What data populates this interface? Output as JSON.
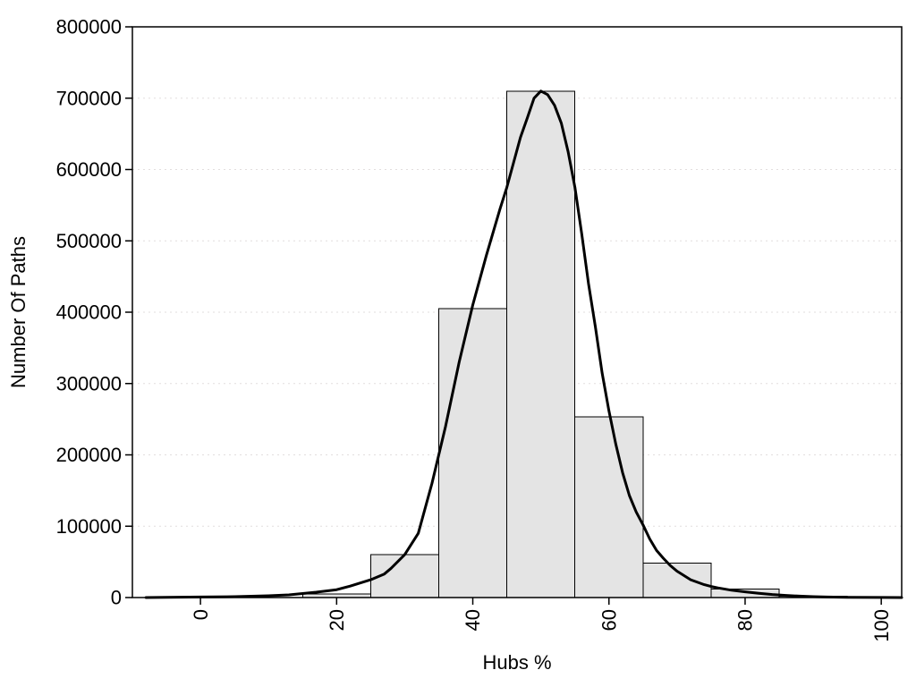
{
  "chart_data": {
    "type": "bar",
    "subtype": "histogram-with-density-curve",
    "title": "",
    "xlabel": "Hubs %",
    "ylabel": "Number Of Paths",
    "xlim": [
      -10,
      103
    ],
    "ylim": [
      0,
      800000
    ],
    "x_ticks": [
      0,
      20,
      40,
      60,
      80,
      100
    ],
    "y_ticks": [
      0,
      100000,
      200000,
      300000,
      400000,
      500000,
      600000,
      700000,
      800000
    ],
    "x_tick_rotation": -90,
    "legend": "none",
    "grid": {
      "horizontal": true,
      "style": "dotted",
      "color": "#e2dede"
    },
    "bars": {
      "bin_edges": [
        15,
        25,
        35,
        45,
        55,
        65,
        75,
        85,
        95
      ],
      "counts": [
        5000,
        60000,
        405000,
        710000,
        253000,
        48000,
        12000,
        2000
      ],
      "fill": "#e4e4e4",
      "stroke": "#000000"
    },
    "curve": {
      "name": "density-curve",
      "color": "#000000",
      "x": [
        -8,
        -5,
        0,
        5,
        10,
        13,
        15,
        17,
        20,
        22,
        25,
        27,
        28,
        30,
        32,
        34,
        35,
        36,
        38,
        40,
        42,
        44,
        45,
        46,
        47,
        48,
        49,
        50,
        51,
        52,
        53,
        54,
        55,
        56,
        57,
        58,
        59,
        60,
        61,
        62,
        63,
        64,
        65,
        66,
        67,
        68,
        69,
        70,
        72,
        74,
        75,
        76,
        78,
        80,
        82,
        84,
        86,
        88,
        90,
        92,
        95,
        100,
        103
      ],
      "y": [
        0,
        300,
        700,
        1200,
        2500,
        3800,
        5600,
        7500,
        11000,
        16000,
        25000,
        33000,
        41000,
        60000,
        90000,
        160000,
        200000,
        240000,
        330000,
        410000,
        480000,
        545000,
        575000,
        610000,
        645000,
        672000,
        700000,
        710000,
        705000,
        690000,
        665000,
        625000,
        575000,
        510000,
        440000,
        380000,
        315000,
        262000,
        215000,
        175000,
        143000,
        120000,
        102000,
        82000,
        66000,
        55000,
        45000,
        37000,
        25000,
        18000,
        15500,
        13500,
        10300,
        8000,
        6000,
        4300,
        3000,
        2000,
        1300,
        800,
        400,
        100,
        50
      ]
    }
  }
}
